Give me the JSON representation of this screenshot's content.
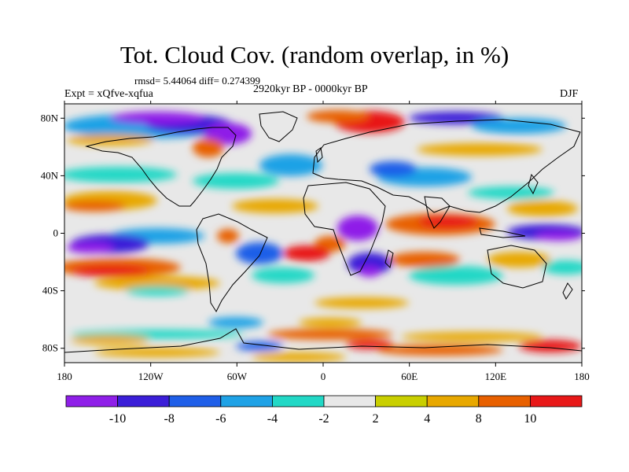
{
  "header": {
    "title": "Tot. Cloud Cov. (random overlap, in %)",
    "stats": "rmsd= 5.44064 diff= 0.274399",
    "experiment": "Expt = xQfve-xqfua",
    "period": "2920kyr BP - 0000kyr BP",
    "season": "DJF"
  },
  "axes": {
    "lon_ticks": [
      "180",
      "120W",
      "60W",
      "0",
      "60E",
      "120E",
      "180"
    ],
    "lat_ticks": [
      "80N",
      "40N",
      "0",
      "40S",
      "80S"
    ]
  },
  "colorbar": {
    "labels": [
      "-10",
      "-8",
      "-6",
      "-4",
      "-2",
      "2",
      "4",
      "8",
      "10"
    ],
    "colors": [
      "#8f1fe8",
      "#3b1ed8",
      "#1f5fe8",
      "#1fa2e6",
      "#22d8c6",
      "#e8e8e8",
      "#c9cf00",
      "#e8a800",
      "#e86000",
      "#e81818"
    ]
  },
  "chart_data": {
    "type": "heatmap",
    "title": "Tot. Cloud Cov. (random overlap, in %)",
    "projection": "cylindrical-equidistant",
    "xlim": [
      -180,
      180
    ],
    "ylim": [
      -90,
      90
    ],
    "grid": false,
    "levels": [
      -10,
      -8,
      -6,
      -4,
      -2,
      2,
      4,
      8,
      10
    ],
    "regions": [
      {
        "name": "arctic-ocean-pos",
        "lon": [
          -20,
          60
        ],
        "lat": [
          70,
          85
        ],
        "value": 10
      },
      {
        "name": "canada-arctic-neg",
        "lon": [
          -140,
          -60
        ],
        "lat": [
          70,
          85
        ],
        "value": -9
      },
      {
        "name": "siberia-arctic-neg",
        "lon": [
          100,
          160
        ],
        "lat": [
          70,
          85
        ],
        "value": -7
      },
      {
        "name": "north-pacific-pos",
        "lon": [
          -180,
          -120
        ],
        "lat": [
          25,
          40
        ],
        "value": 6
      },
      {
        "name": "north-atlantic-neg",
        "lon": [
          -50,
          -10
        ],
        "lat": [
          30,
          50
        ],
        "value": -4
      },
      {
        "name": "asia-midlat-neg",
        "lon": [
          40,
          110
        ],
        "lat": [
          25,
          45
        ],
        "value": -5
      },
      {
        "name": "africa-tropics-neg",
        "lon": [
          10,
          30
        ],
        "lat": [
          -5,
          10
        ],
        "value": -9
      },
      {
        "name": "indian-ocean-pos",
        "lon": [
          60,
          130
        ],
        "lat": [
          0,
          15
        ],
        "value": 9
      },
      {
        "name": "tropical-pacific-neg",
        "lon": [
          -180,
          -130
        ],
        "lat": [
          -10,
          5
        ],
        "value": -9
      },
      {
        "name": "south-pacific-pos",
        "lon": [
          -180,
          -110
        ],
        "lat": [
          -30,
          -10
        ],
        "value": 7
      },
      {
        "name": "south-atlantic-neg",
        "lon": [
          -40,
          0
        ],
        "lat": [
          -40,
          -10
        ],
        "value": -5
      },
      {
        "name": "south-africa-neg",
        "lon": [
          15,
          40
        ],
        "lat": [
          -35,
          -15
        ],
        "value": -8
      },
      {
        "name": "south-indian-neg",
        "lon": [
          30,
          100
        ],
        "lat": [
          -40,
          -25
        ],
        "value": -3
      },
      {
        "name": "west-pacific-neg",
        "lon": [
          150,
          180
        ],
        "lat": [
          -5,
          8
        ],
        "value": -8
      },
      {
        "name": "antarctic-belt-pos",
        "lon": [
          -180,
          180
        ],
        "lat": [
          -80,
          -65
        ],
        "value": 5
      }
    ]
  }
}
